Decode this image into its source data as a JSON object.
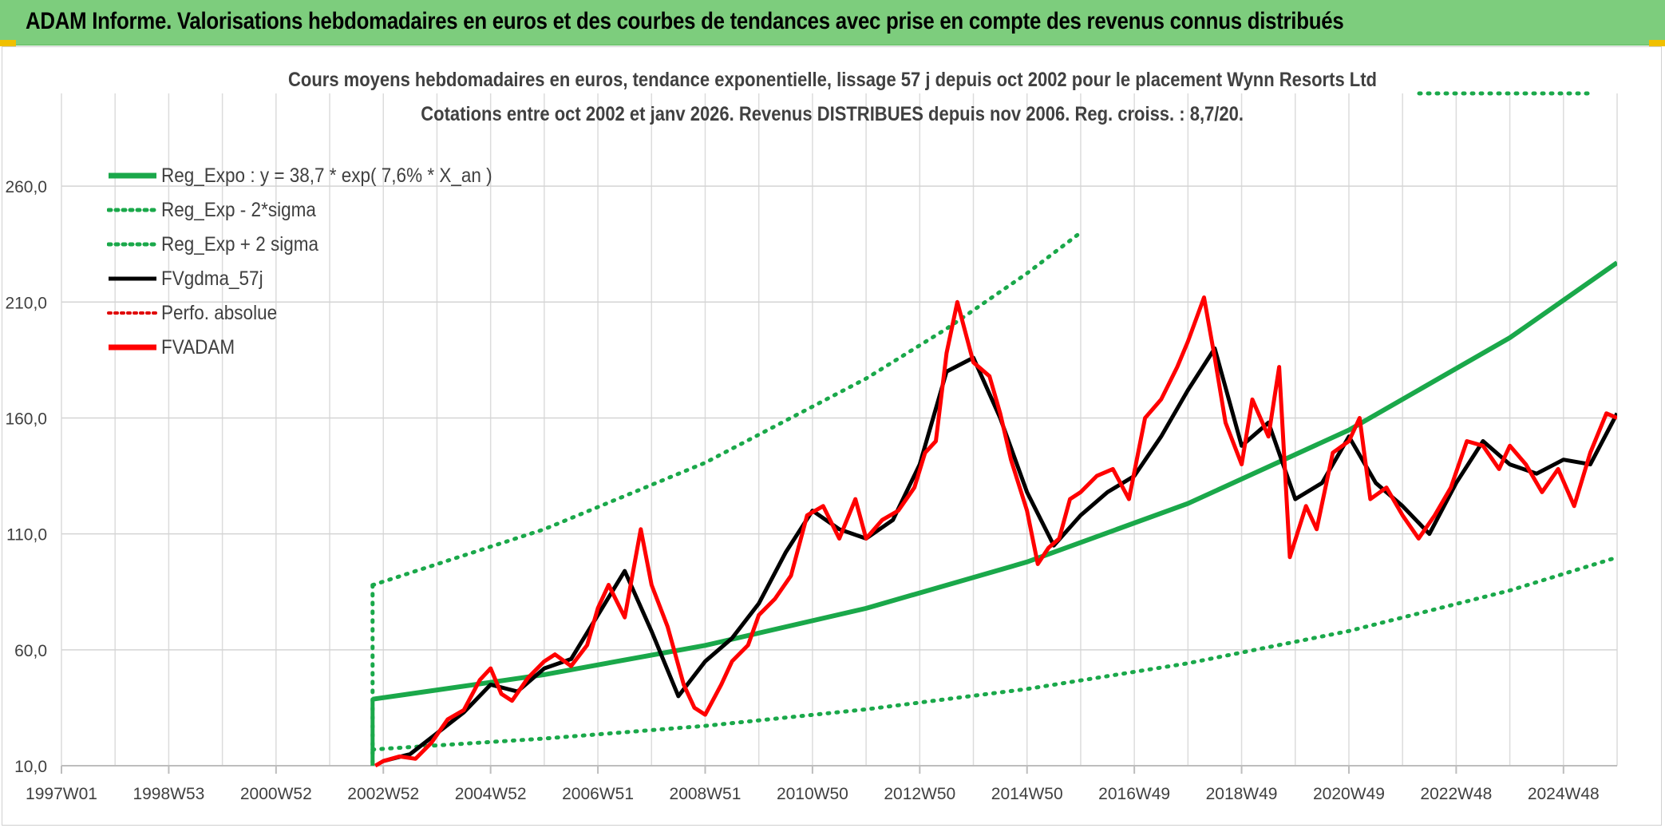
{
  "header": {
    "title": "ADAM Informe. Valorisations hebdomadaires en euros et des courbes de tendances avec prise en compte des revenus connus distribués"
  },
  "chart_data": {
    "type": "line",
    "title": "Cours moyens hebdomadaires en euros, tendance exponentielle, lissage 57 j depuis oct 2002 pour le placement Wynn Resorts Ltd",
    "subtitle": "Cotations entre oct 2002 et janv 2026. Revenus DISTRIBUES depuis nov 2006. Reg. croiss. : 8,7/20.",
    "y_ticks": [
      "10,0",
      "60,0",
      "110,0",
      "160,0",
      "210,0",
      "260,0"
    ],
    "ylim": [
      10,
      300
    ],
    "x_ticks": [
      "1997W01",
      "1998W53",
      "2000W52",
      "2002W52",
      "2004W52",
      "2006W51",
      "2008W51",
      "2010W50",
      "2012W50",
      "2014W50",
      "2016W49",
      "2018W49",
      "2020W49",
      "2022W48",
      "2024W48"
    ],
    "xlim": [
      1997.0,
      2026.0
    ],
    "grid": true,
    "legend_position": "top-left",
    "colors": {
      "reg": "#1aa84a",
      "sigma": "#1aa84a",
      "gdma": "#000000",
      "perfo": "#e00000",
      "fvadam": "#ff0000"
    },
    "series": [
      {
        "name": "Reg_Expo : y = 38,7 * exp( 7,6% *  X_an )",
        "style": "thick-green",
        "x": [
          2002.8,
          2006.0,
          2009.0,
          2012.0,
          2015.0,
          2018.0,
          2021.0,
          2024.0,
          2026.0
        ],
        "values": [
          38.7,
          49.3,
          61.9,
          77.9,
          97.9,
          123.1,
          154.8,
          194.6,
          227.0
        ]
      },
      {
        "name": "Reg_Exp - 2*sigma",
        "style": "dotted-green",
        "x": [
          2002.8,
          2006.0,
          2009.0,
          2012.0,
          2015.0,
          2018.0,
          2021.0,
          2024.0,
          2026.0
        ],
        "values": [
          17.0,
          21.7,
          27.2,
          34.3,
          43.1,
          54.2,
          68.1,
          85.6,
          99.9
        ]
      },
      {
        "name": "Reg_Exp + 2 sigma",
        "style": "dotted-green",
        "x": [
          2002.8,
          2006.0,
          2009.0,
          2012.0,
          2013.5,
          2015.0,
          2016.0
        ],
        "values": [
          87.9,
          112.0,
          140.7,
          177.0,
          198.5,
          222.4,
          240.0
        ]
      },
      {
        "name": "FVgdma_57j",
        "style": "black",
        "x": [
          2003.0,
          2003.5,
          2004.0,
          2004.5,
          2005.0,
          2005.5,
          2006.0,
          2006.5,
          2007.0,
          2007.5,
          2008.0,
          2008.5,
          2009.0,
          2009.5,
          2010.0,
          2010.5,
          2011.0,
          2011.5,
          2012.0,
          2012.5,
          2013.0,
          2013.5,
          2014.0,
          2014.5,
          2015.0,
          2015.5,
          2016.0,
          2016.5,
          2017.0,
          2017.5,
          2018.0,
          2018.5,
          2019.0,
          2019.5,
          2020.0,
          2020.5,
          2021.0,
          2021.5,
          2022.0,
          2022.5,
          2023.0,
          2023.5,
          2024.0,
          2024.5,
          2025.0,
          2025.5,
          2026.0
        ],
        "values": [
          12,
          15,
          24,
          33,
          45,
          42,
          52,
          56,
          75,
          94,
          68,
          40,
          55,
          65,
          80,
          102,
          120,
          112,
          108,
          116,
          140,
          180,
          186,
          160,
          128,
          105,
          118,
          128,
          135,
          152,
          172,
          190,
          148,
          158,
          125,
          132,
          152,
          132,
          122,
          110,
          132,
          150,
          140,
          136,
          142,
          140,
          162
        ]
      },
      {
        "name": "Perfo. absolue",
        "style": "dotted-red",
        "x": [],
        "values": []
      },
      {
        "name": "FVADAM",
        "style": "thick-red",
        "x": [
          2002.85,
          2003.0,
          2003.3,
          2003.6,
          2003.9,
          2004.2,
          2004.5,
          2004.8,
          2005.0,
          2005.2,
          2005.4,
          2005.7,
          2006.0,
          2006.2,
          2006.5,
          2006.8,
          2007.0,
          2007.2,
          2007.5,
          2007.8,
          2008.0,
          2008.3,
          2008.6,
          2008.8,
          2009.0,
          2009.3,
          2009.5,
          2009.8,
          2010.0,
          2010.3,
          2010.6,
          2010.9,
          2011.2,
          2011.5,
          2011.8,
          2012.0,
          2012.3,
          2012.6,
          2012.9,
          2013.1,
          2013.3,
          2013.5,
          2013.7,
          2014.0,
          2014.3,
          2014.5,
          2014.7,
          2015.0,
          2015.2,
          2015.4,
          2015.6,
          2015.8,
          2016.0,
          2016.3,
          2016.6,
          2016.9,
          2017.2,
          2017.5,
          2017.8,
          2018.0,
          2018.3,
          2018.5,
          2018.7,
          2019.0,
          2019.2,
          2019.5,
          2019.7,
          2019.9,
          2020.2,
          2020.4,
          2020.7,
          2021.0,
          2021.2,
          2021.4,
          2021.7,
          2022.0,
          2022.3,
          2022.6,
          2022.9,
          2023.2,
          2023.5,
          2023.8,
          2024.0,
          2024.3,
          2024.6,
          2024.9,
          2025.2,
          2025.5,
          2025.8,
          2026.0
        ],
        "values": [
          10,
          12,
          14,
          13,
          20,
          30,
          34,
          47,
          52,
          41,
          38,
          48,
          55,
          58,
          53,
          62,
          78,
          88,
          74,
          112,
          88,
          70,
          45,
          35,
          32,
          45,
          55,
          62,
          75,
          82,
          92,
          118,
          122,
          108,
          125,
          108,
          116,
          120,
          130,
          145,
          150,
          188,
          210,
          184,
          178,
          162,
          142,
          120,
          97,
          104,
          108,
          125,
          128,
          135,
          138,
          125,
          160,
          168,
          182,
          193,
          212,
          186,
          158,
          140,
          168,
          152,
          182,
          100,
          122,
          112,
          145,
          150,
          160,
          125,
          130,
          118,
          108,
          118,
          130,
          150,
          148,
          138,
          148,
          140,
          128,
          138,
          122,
          145,
          162,
          160
        ]
      }
    ]
  }
}
